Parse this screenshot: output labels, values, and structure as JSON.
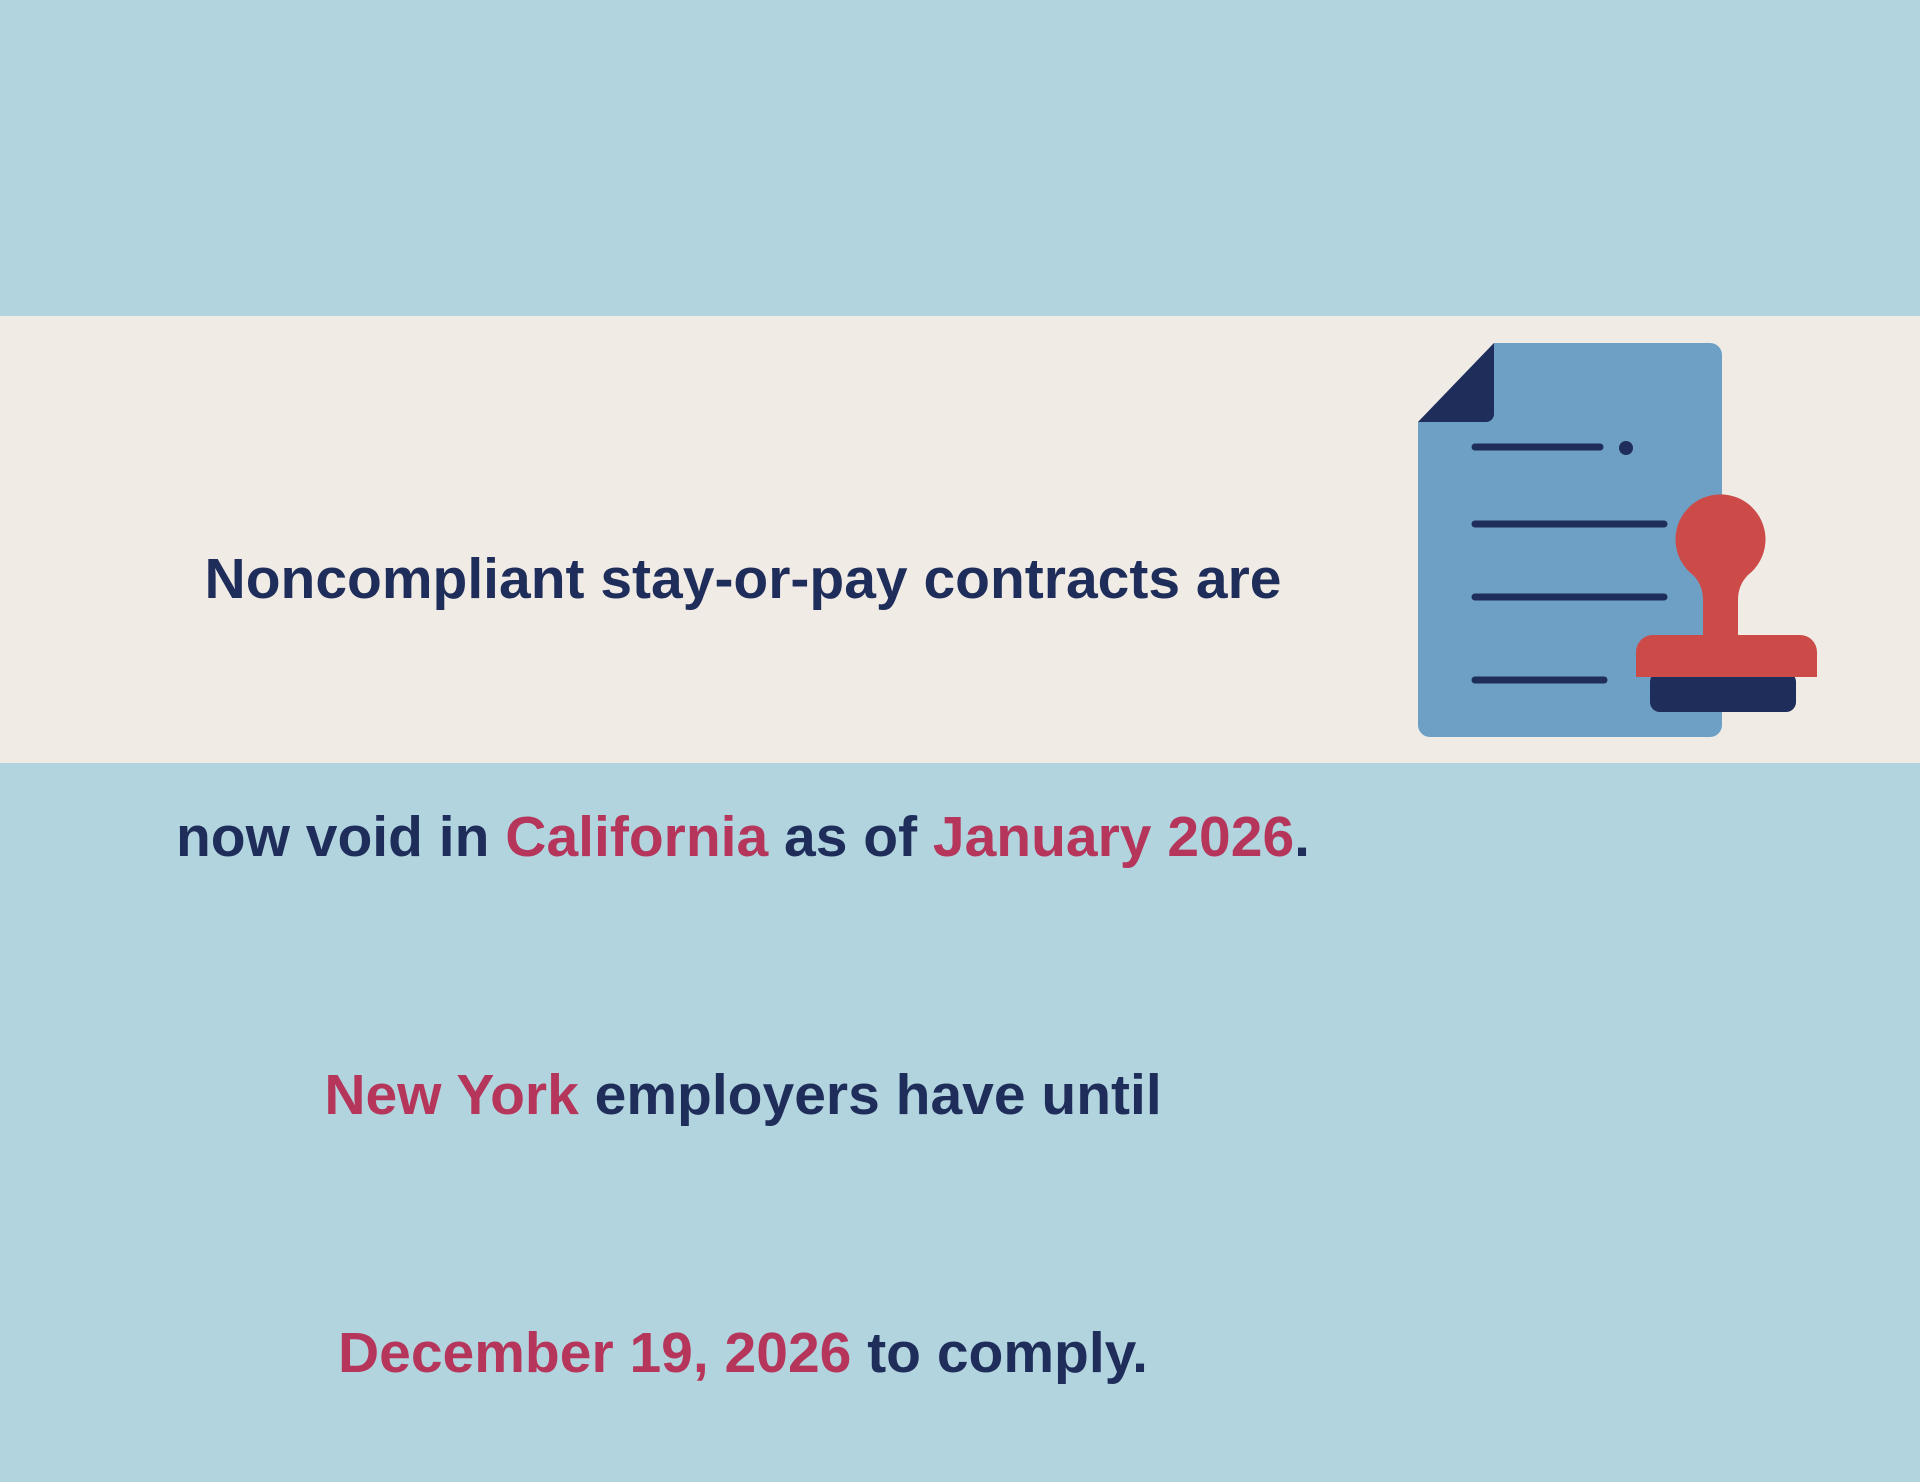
{
  "message": {
    "lines": [
      {
        "segments": [
          "Noncompliant stay-or-pay contracts are"
        ]
      },
      {
        "segments": [
          "now void in ",
          "California",
          " as of ",
          "January 2026",
          "."
        ]
      },
      {
        "segments": [
          "New York",
          " employers have until"
        ]
      },
      {
        "segments": [
          "December 19, 2026",
          " to comply."
        ]
      }
    ]
  }
}
